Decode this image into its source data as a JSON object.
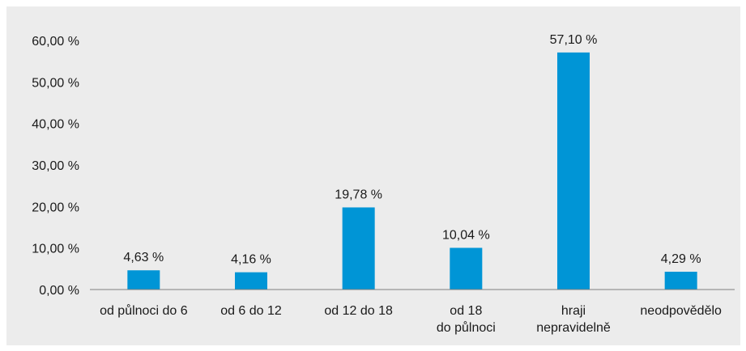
{
  "chart_data": {
    "type": "bar",
    "categories": [
      [
        "od půlnoci do 6"
      ],
      [
        "od 6 do 12"
      ],
      [
        "od 12 do 18"
      ],
      [
        "od 18",
        "do půlnoci"
      ],
      [
        "hraji",
        "nepravidelně"
      ],
      [
        "neodpovědělo"
      ]
    ],
    "values": [
      4.63,
      4.16,
      19.78,
      10.04,
      57.1,
      4.29
    ],
    "data_labels": [
      "4,63 %",
      "4,16 %",
      "19,78 %",
      "10,04 %",
      "57,10 %",
      "4,29 %"
    ],
    "y_ticks": [
      0,
      10,
      20,
      30,
      40,
      50,
      60
    ],
    "y_tick_labels": [
      "0,00 %",
      "10,00 %",
      "20,00 %",
      "30,00 %",
      "40,00 %",
      "50,00 %",
      "60,00 %"
    ],
    "ylim": [
      0,
      60
    ],
    "grid": false,
    "legend": "none",
    "bar_color": "#0095d6",
    "axis_color": "#7f7f7f",
    "background_color": "#ececec"
  }
}
